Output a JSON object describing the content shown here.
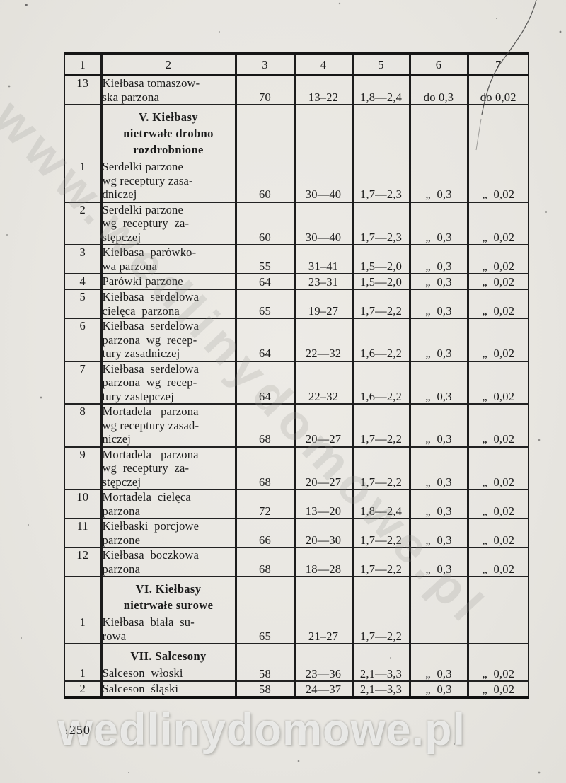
{
  "watermarks": {
    "diagonal_text": "www.wedlinydomowe.pl",
    "bottom_text": "wedlinydomowe.pl"
  },
  "page_number": "250",
  "table": {
    "headers": [
      "1",
      "2",
      "3",
      "4",
      "5",
      "6",
      "7"
    ],
    "rows": [
      {
        "type": "data",
        "no": "13",
        "name": [
          "Kiełbasa tomaszow-",
          "ska parzona"
        ],
        "cols": [
          "70",
          "13–22",
          "1,8—2,4",
          "do 0,3",
          "do 0,02"
        ]
      },
      {
        "type": "section",
        "name": [
          "V. Kiełbasy",
          "nietrwałe drobno",
          "rozdrobnione"
        ]
      },
      {
        "type": "data",
        "no": "1",
        "name": [
          "Serdelki parzone",
          "wg receptury zasa-",
          "dniczej"
        ],
        "cols": [
          "60",
          "30—40",
          "1,7—2,3",
          "„  0,3",
          "„  0,02"
        ]
      },
      {
        "type": "data",
        "no": "2",
        "name": [
          "Serdelki parzone",
          "wg  receptury  za-",
          "stępczej"
        ],
        "cols": [
          "60",
          "30—40",
          "1,7—2,3",
          "„  0,3",
          "„  0,02"
        ]
      },
      {
        "type": "data",
        "no": "3",
        "name": [
          "Kiełbasa  parówko-",
          "wa parzona"
        ],
        "cols": [
          "55",
          "31–41",
          "1,5—2,0",
          "„  0,3",
          "„  0,02"
        ]
      },
      {
        "type": "data",
        "no": "4",
        "name": [
          "Parówki parzone"
        ],
        "cols": [
          "64",
          "23–31",
          "1,5—2,0",
          "„  0,3",
          "„  0,02"
        ]
      },
      {
        "type": "data",
        "no": "5",
        "name": [
          "Kiełbasa  serdelowa",
          "cielęca  parzona"
        ],
        "cols": [
          "65",
          "19–27",
          "1,7—2,2",
          "„  0,3",
          "„  0,02"
        ]
      },
      {
        "type": "data",
        "no": "6",
        "name": [
          "Kiełbasa  serdelowa",
          "parzona  wg  recep-",
          "tury zasadniczej"
        ],
        "cols": [
          "64",
          "22—32",
          "1,6—2,2",
          "„  0,3",
          "„  0,02"
        ]
      },
      {
        "type": "data",
        "no": "7",
        "name": [
          "Kiełbasa  serdelowa",
          "parzona  wg  recep-",
          "tury zastępczej"
        ],
        "cols": [
          "64",
          "22–32",
          "1,6—2,2",
          "„  0,3",
          "„  0,02"
        ]
      },
      {
        "type": "data",
        "no": "8",
        "name": [
          "Mortadela   parzona",
          "wg receptury zasad-",
          "niczej"
        ],
        "cols": [
          "68",
          "20—27",
          "1,7—2,2",
          "„  0,3",
          "„  0,02"
        ]
      },
      {
        "type": "data",
        "no": "9",
        "name": [
          "Mortadela   parzona",
          "wg  receptury  za-",
          "stępczej"
        ],
        "cols": [
          "68",
          "20—27",
          "1,7—2,2",
          "„  0,3",
          "„  0,02"
        ]
      },
      {
        "type": "data",
        "no": "10",
        "name": [
          "Mortadela  cielęca",
          "parzona"
        ],
        "cols": [
          "72",
          "13—20",
          "1,8—2,4",
          "„  0,3",
          "„  0,02"
        ]
      },
      {
        "type": "data",
        "no": "11",
        "name": [
          "Kiełbaski  porcjowe",
          "parzone"
        ],
        "cols": [
          "66",
          "20—30",
          "1,7—2,2",
          "„  0,3",
          "„  0,02"
        ]
      },
      {
        "type": "data",
        "no": "12",
        "name": [
          "Kiełbasa  boczkowa",
          "parzona"
        ],
        "cols": [
          "68",
          "18—28",
          "1,7—2,2",
          "„  0,3",
          "„  0,02"
        ]
      },
      {
        "type": "section",
        "name": [
          "VI. Kiełbasy",
          "nietrwałe surowe"
        ]
      },
      {
        "type": "data",
        "no": "1",
        "name": [
          "Kiełbasa  biała  su-",
          "rowa"
        ],
        "cols": [
          "65",
          "21–27",
          "1,7—2,2",
          "",
          ""
        ]
      },
      {
        "type": "section",
        "name": [
          "VII. Salcesony"
        ]
      },
      {
        "type": "data",
        "no": "1",
        "name": [
          "Salceson  włoski"
        ],
        "cols": [
          "58",
          "23—36",
          "2,1—3,3",
          "„  0,3",
          "„  0,02"
        ]
      },
      {
        "type": "data",
        "no": "2",
        "name": [
          "Salceson  śląski"
        ],
        "cols": [
          "58",
          "24—37",
          "2,1—3,3",
          "„  0,3",
          "„  0,02"
        ]
      }
    ]
  }
}
